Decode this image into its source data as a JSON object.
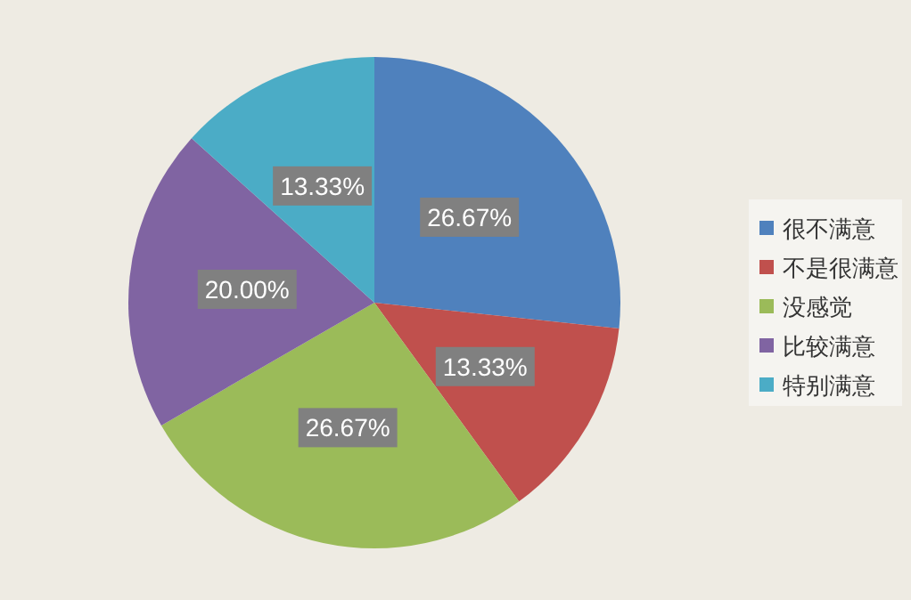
{
  "chart_data": {
    "type": "pie",
    "categories": [
      "很不满意",
      "不是很满意",
      "没感觉",
      "比较满意",
      "特别满意"
    ],
    "values": [
      26.67,
      13.33,
      26.67,
      20.0,
      13.33
    ],
    "value_labels": [
      "26.67%",
      "13.33%",
      "26.67%",
      "20.00%",
      "13.33%"
    ],
    "colors": [
      "#4f81bd",
      "#c0504d",
      "#9bbb59",
      "#8064a2",
      "#4bacc6"
    ],
    "legend": "right"
  }
}
